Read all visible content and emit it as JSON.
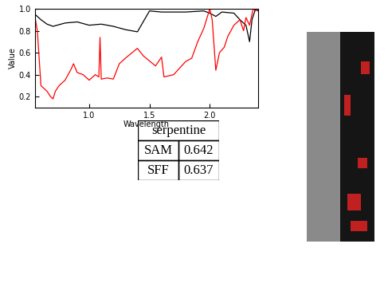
{
  "chart_data": {
    "type": "line",
    "x_label": "Wavelength",
    "y_label": "Value",
    "xlim": [
      0.55,
      2.4
    ],
    "ylim": [
      0.1,
      1.0
    ],
    "xticks": [
      1.0,
      1.5,
      2.0
    ],
    "yticks": [
      0.2,
      0.4,
      0.6,
      0.8,
      1.0
    ],
    "grid": false,
    "series": [
      {
        "color": "black",
        "x": [
          0.55,
          0.6,
          0.65,
          0.7,
          0.8,
          0.9,
          1.0,
          1.1,
          1.2,
          1.3,
          1.4,
          1.5,
          1.6,
          1.8,
          1.95,
          2.0,
          2.05,
          2.1,
          2.2,
          2.25,
          2.3,
          2.33,
          2.35,
          2.38,
          2.4
        ],
        "values": [
          0.95,
          0.9,
          0.86,
          0.84,
          0.87,
          0.88,
          0.85,
          0.86,
          0.84,
          0.81,
          0.79,
          0.98,
          0.97,
          0.97,
          0.98,
          0.96,
          0.93,
          0.97,
          0.96,
          0.9,
          0.85,
          0.7,
          0.9,
          1.0,
          0.98
        ]
      },
      {
        "color": "red",
        "x": [
          0.55,
          0.57,
          0.6,
          0.62,
          0.65,
          0.68,
          0.7,
          0.72,
          0.75,
          0.8,
          0.85,
          0.87,
          0.9,
          0.95,
          1.0,
          1.05,
          1.08,
          1.09,
          1.1,
          1.15,
          1.2,
          1.25,
          1.3,
          1.4,
          1.45,
          1.55,
          1.6,
          1.62,
          1.7,
          1.8,
          1.85,
          1.9,
          1.95,
          2.0,
          2.02,
          2.05,
          2.08,
          2.12,
          2.15,
          2.2,
          2.25,
          2.28,
          2.3,
          2.33,
          2.36,
          2.38,
          2.4
        ],
        "values": [
          0.93,
          0.8,
          0.3,
          0.28,
          0.25,
          0.2,
          0.18,
          0.25,
          0.3,
          0.35,
          0.45,
          0.5,
          0.42,
          0.4,
          0.35,
          0.4,
          0.38,
          0.74,
          0.36,
          0.37,
          0.36,
          0.5,
          0.55,
          0.64,
          0.57,
          0.48,
          0.56,
          0.38,
          0.4,
          0.52,
          0.55,
          0.7,
          0.82,
          1.0,
          0.9,
          0.44,
          0.6,
          0.65,
          0.75,
          0.85,
          0.9,
          0.8,
          0.92,
          0.85,
          1.0,
          0.98,
          1.0
        ]
      }
    ]
  },
  "table": {
    "title": "serpentine",
    "rows": [
      [
        "SAM",
        "0.642"
      ],
      [
        "SFF",
        "0.637"
      ]
    ]
  }
}
